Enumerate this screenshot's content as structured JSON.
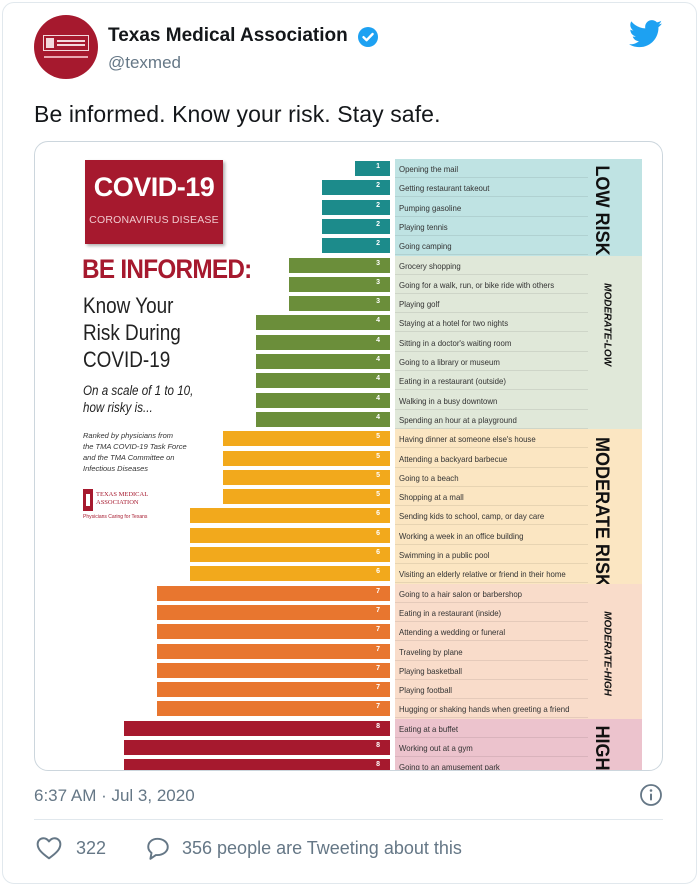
{
  "tweet": {
    "account_name": "Texas Medical Association",
    "handle": "@texmed",
    "text": "Be informed. Know your risk. Stay safe.",
    "timestamp": "6:37 AM · Jul 3, 2020",
    "likes": "322",
    "tweeting_text": "356 people are Tweeting about this"
  },
  "avatar": {
    "logo_line1": "TEXAS MEDICAL",
    "logo_line2": "ASSOCIATION"
  },
  "infographic": {
    "badge_title": "COVID-19",
    "badge_subtitle": "CORONAVIRUS DISEASE",
    "headline": "BE INFORMED:",
    "subhead_lines": [
      "Know Your",
      "Risk During",
      "COVID-19"
    ],
    "scale_lines": [
      "On a scale of 1 to 10,",
      "how risky is..."
    ],
    "ranked_lines": [
      "Ranked by physicians from",
      "the TMA COVID-19 Task Force",
      "and the TMA Committee on",
      "Infectious Diseases"
    ],
    "logo_lines": [
      "TEXAS MEDICAL",
      "ASSOCIATION"
    ],
    "logo_tagline": "Physicians Caring for Texans",
    "bands": [
      {
        "label": "LOW RISK",
        "color": "#bfe3e3",
        "style": "large"
      },
      {
        "label": "MODERATE-LOW",
        "color": "#e0e8d9",
        "style": "small"
      },
      {
        "label": "MODERATE RISK",
        "color": "#fbe6c2",
        "style": "large"
      },
      {
        "label": "MODERATE-HIGH",
        "color": "#f9dcca",
        "style": "small"
      },
      {
        "label": "HIGH RISK",
        "color": "#ecc3cd",
        "style": "large"
      }
    ],
    "items": [
      {
        "level": 1,
        "activity": "Opening the mail"
      },
      {
        "level": 2,
        "activity": "Getting restaurant takeout"
      },
      {
        "level": 2,
        "activity": "Pumping gasoline"
      },
      {
        "level": 2,
        "activity": "Playing tennis"
      },
      {
        "level": 2,
        "activity": "Going camping"
      },
      {
        "level": 3,
        "activity": "Grocery shopping"
      },
      {
        "level": 3,
        "activity": "Going for a walk, run, or bike ride with others"
      },
      {
        "level": 3,
        "activity": "Playing golf"
      },
      {
        "level": 4,
        "activity": "Staying at a hotel for two nights"
      },
      {
        "level": 4,
        "activity": "Sitting in a doctor's waiting room"
      },
      {
        "level": 4,
        "activity": "Going to a library or museum"
      },
      {
        "level": 4,
        "activity": "Eating in a restaurant (outside)"
      },
      {
        "level": 4,
        "activity": "Walking in a busy downtown"
      },
      {
        "level": 4,
        "activity": "Spending an hour at a playground"
      },
      {
        "level": 5,
        "activity": "Having dinner at someone else's house"
      },
      {
        "level": 5,
        "activity": "Attending a backyard barbecue"
      },
      {
        "level": 5,
        "activity": "Going to a beach"
      },
      {
        "level": 5,
        "activity": "Shopping at a mall"
      },
      {
        "level": 6,
        "activity": "Sending kids to school, camp, or day care"
      },
      {
        "level": 6,
        "activity": "Working a week in an office building"
      },
      {
        "level": 6,
        "activity": "Swimming in a public pool"
      },
      {
        "level": 6,
        "activity": "Visiting an elderly relative or friend in their home"
      },
      {
        "level": 7,
        "activity": "Going to a hair salon or barbershop"
      },
      {
        "level": 7,
        "activity": "Eating in a restaurant (inside)"
      },
      {
        "level": 7,
        "activity": "Attending a wedding or funeral"
      },
      {
        "level": 7,
        "activity": "Traveling by plane"
      },
      {
        "level": 7,
        "activity": "Playing basketball"
      },
      {
        "level": 7,
        "activity": "Playing football"
      },
      {
        "level": 7,
        "activity": "Hugging or shaking hands when greeting a friend"
      },
      {
        "level": 8,
        "activity": "Eating at a buffet"
      },
      {
        "level": 8,
        "activity": "Working out at a gym"
      },
      {
        "level": 8,
        "activity": "Going to an amusement park"
      }
    ],
    "level_colors": {
      "1": "#1c8b8b",
      "2": "#1c8b8b",
      "3": "#6b8e3a",
      "4": "#6b8e3a",
      "5": "#f2a91c",
      "6": "#f2a91c",
      "7": "#e8762f",
      "8": "#a6192e"
    }
  },
  "icons": {
    "brand": "twitter-bird-icon",
    "verified": "verified-badge-icon",
    "info": "info-icon",
    "like": "heart-icon",
    "reply": "speech-bubble-icon"
  },
  "colors": {
    "twitter_blue": "#1da1f2",
    "muted_text": "#657786",
    "tma_red": "#a6192e"
  }
}
